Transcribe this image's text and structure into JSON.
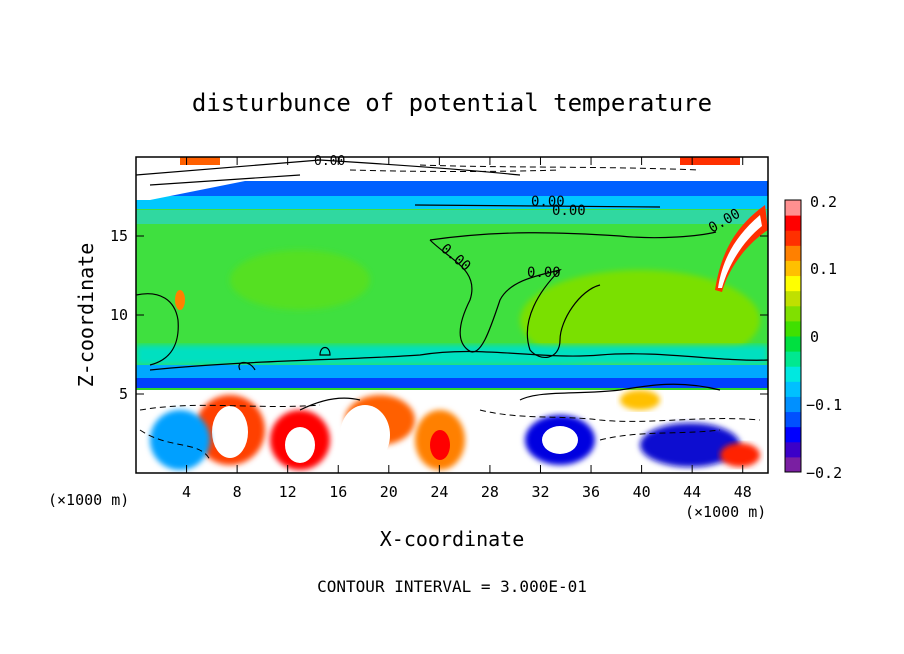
{
  "chart_data": {
    "type": "heatmap",
    "title": "disturbunce of potential temperature",
    "xlabel": "X-coordinate",
    "ylabel": "Z-coordinate",
    "x_unit": "(×1000 m)",
    "xlim": [
      0,
      50
    ],
    "ylim": [
      0,
      20
    ],
    "x_ticks": [
      4,
      8,
      12,
      16,
      20,
      24,
      28,
      32,
      36,
      40,
      44,
      48
    ],
    "y_ticks": [
      5,
      10,
      15
    ],
    "colorbar": {
      "ticks": [
        "0.2",
        "0.1",
        "0",
        "−0.1",
        "−0.2"
      ],
      "tick_values": [
        0.2,
        0.1,
        0,
        -0.1,
        -0.2
      ],
      "range": [
        -0.2,
        0.2
      ],
      "colors": [
        "#7a1fa2",
        "#3b00c8",
        "#0000ff",
        "#0050ff",
        "#0090ff",
        "#00c0ff",
        "#00e8e0",
        "#00e890",
        "#00e040",
        "#40e000",
        "#80e000",
        "#c0e000",
        "#ffff00",
        "#ffc000",
        "#ff8000",
        "#ff3000",
        "#ff0000",
        "#ff9090"
      ]
    },
    "contour_labels": [
      "0.00",
      "0.00",
      "0.00",
      "0.00",
      "0.00",
      "0.00"
    ],
    "annotation": "CONTOUR INTERVAL = 3.000E-01"
  }
}
